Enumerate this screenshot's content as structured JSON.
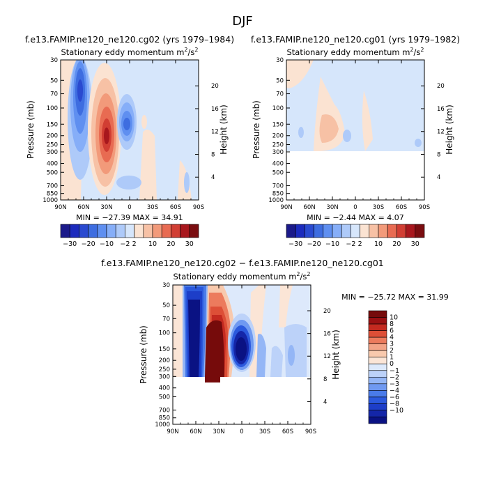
{
  "main_title": "DJF",
  "palette_main": [
    "#1b1a8a",
    "#1c2bbd",
    "#2a4ad0",
    "#3e6de0",
    "#5f8ff0",
    "#86aef8",
    "#aecaf9",
    "#d6e6fb",
    "#fbe3d2",
    "#f7c1a5",
    "#f29a7a",
    "#e86b52",
    "#d13e33",
    "#a8171d",
    "#7a0d10"
  ],
  "palette_diff": [
    "#0a1283",
    "#1426a8",
    "#1d3ec8",
    "#2b59dd",
    "#4a7be9",
    "#6f99f1",
    "#94b6f6",
    "#bcd2f9",
    "#dde9fb",
    "#fbe5d6",
    "#f8c9ad",
    "#f3a487",
    "#ec7b5d",
    "#dd4f37",
    "#c42a20",
    "#9a1012",
    "#760b0b"
  ],
  "chart_data": [
    {
      "id": "panel1",
      "type": "heatmap",
      "title": "f.e13.FAMIP.ne120_ne120.cg02 (yrs 1979–1984)",
      "subtitle_main": "Stationary eddy momentum m",
      "subtitle_sup": "2",
      "subtitle_mid": "/s",
      "subtitle_end": "",
      "ylabel": "Pressure (mb)",
      "ylabel_right": "Height (km)",
      "x_ticks": [
        "90N",
        "60N",
        "30N",
        "0",
        "30S",
        "60S",
        "90S"
      ],
      "y_ticks": [
        "30",
        "50",
        "70",
        "100",
        "150",
        "200",
        "250",
        "300",
        "400",
        "500",
        "700",
        "850",
        "1000"
      ],
      "height_ticks": [
        "20",
        "16",
        "12",
        "8",
        "4"
      ],
      "stats": "MIN = −27.39   MAX =  34.91",
      "colorbar_labels": [
        "−30",
        "−20",
        "−10",
        "−2",
        "2",
        "10",
        "20",
        "30"
      ],
      "min": -27.39,
      "max": 34.91,
      "features": [
        {
          "name": "polar-jet-easterly",
          "lat": 63,
          "p": 95,
          "value": -25
        },
        {
          "name": "subtropical-jet",
          "lat": 31,
          "p": 200,
          "value": 35
        },
        {
          "name": "equatorial-low",
          "lat": 4,
          "p": 150,
          "value": -22
        }
      ]
    },
    {
      "id": "panel2",
      "type": "heatmap",
      "title": "f.e13.FAMIP.ne120_ne120.cg01 (yrs 1979–1982)",
      "subtitle_main": "Stationary eddy momentum m",
      "subtitle_sup": "2",
      "subtitle_mid": "/s",
      "subtitle_end": "",
      "ylabel": "Pressure (mb)",
      "ylabel_right": "Height (km)",
      "x_ticks": [
        "90N",
        "60N",
        "30N",
        "0",
        "30S",
        "60S",
        "90S"
      ],
      "y_ticks": [
        "30",
        "50",
        "70",
        "100",
        "150",
        "200",
        "250",
        "300",
        "400",
        "500",
        "700",
        "850",
        "1000"
      ],
      "height_ticks": [
        "20",
        "16",
        "12",
        "8",
        "4"
      ],
      "stats": "MIN = −2.44   MAX =   4.07",
      "colorbar_labels": [
        "−30",
        "−20",
        "−10",
        "−2",
        "2",
        "10",
        "20",
        "30"
      ],
      "min": -2.44,
      "max": 4.07
    },
    {
      "id": "diff",
      "type": "heatmap",
      "title": "f.e13.FAMIP.ne120_ne120.cg02 − f.e13.FAMIP.ne120_ne120.cg01",
      "subtitle_main": "Stationary eddy momentum m",
      "subtitle_sup": "2",
      "subtitle_mid": "/s",
      "subtitle_end": "",
      "ylabel": "Pressure (mb)",
      "ylabel_right": "Height (km)",
      "x_ticks": [
        "90N",
        "60N",
        "30N",
        "0",
        "30S",
        "60S",
        "90S"
      ],
      "y_ticks": [
        "30",
        "50",
        "70",
        "100",
        "150",
        "200",
        "250",
        "300",
        "400",
        "500",
        "700",
        "850",
        "1000"
      ],
      "height_ticks": [
        "20",
        "16",
        "12",
        "8",
        "4"
      ],
      "stats": "MIN = −25.72   MAX =  31.99",
      "colorbar_labels": [
        "10",
        "8",
        "6",
        "4",
        "3",
        "2",
        "1",
        "0",
        "−1",
        "−2",
        "−3",
        "−4",
        "−6",
        "−8",
        "−10"
      ],
      "min": -25.72,
      "max": 31.99
    }
  ]
}
